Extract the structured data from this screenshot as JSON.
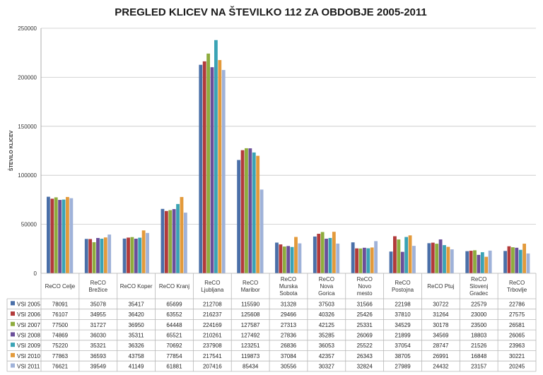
{
  "chart_data": {
    "type": "bar",
    "title": "PREGLED KLICEV NA ŠTEVILKO 112 ZA OBDOBJE 2005-2011",
    "ylabel": "ŠTEVILO KLICEV",
    "xlabel": "",
    "ylim": [
      0,
      250000
    ],
    "yticks": [
      0,
      50000,
      100000,
      150000,
      200000,
      250000
    ],
    "grid": true,
    "legend_position": "bottom-table",
    "categories": [
      "ReCO Celje",
      "ReCO Brežice",
      "ReCO Koper",
      "ReCO Kranj",
      "ReCO Ljubljana",
      "ReCO Maribor",
      "ReCO Murska Sobota",
      "ReCO Nova Gorica",
      "ReCO Novo mesto",
      "ReCO Postojna",
      "ReCO Ptuj",
      "ReCO Slovenj Gradec",
      "ReCO Trbovlje"
    ],
    "series": [
      {
        "name": "VSI 2005",
        "color": "#4a6fa8",
        "values": [
          78091,
          35078,
          35417,
          65699,
          212708,
          115590,
          31328,
          37503,
          31566,
          22198,
          30722,
          22579,
          22786
        ]
      },
      {
        "name": "VSI 2006",
        "color": "#b23a3a",
        "values": [
          76107,
          34955,
          36420,
          63552,
          216237,
          125608,
          29466,
          40326,
          25426,
          37810,
          31264,
          23000,
          27575
        ]
      },
      {
        "name": "VSI 2007",
        "color": "#8eac3e",
        "values": [
          77500,
          31727,
          36950,
          64448,
          224169,
          127587,
          27313,
          42125,
          25331,
          34529,
          30178,
          23500,
          26581
        ]
      },
      {
        "name": "VSI 2008",
        "color": "#6b4f9a",
        "values": [
          74869,
          36030,
          35311,
          65521,
          210261,
          127492,
          27836,
          35285,
          26069,
          21899,
          34569,
          18803,
          26065
        ]
      },
      {
        "name": "VSI 2009",
        "color": "#3aa3b5",
        "values": [
          75220,
          35321,
          36326,
          70692,
          237908,
          123251,
          26836,
          36053,
          25522,
          37054,
          28747,
          21526,
          23963
        ]
      },
      {
        "name": "VSI 2010",
        "color": "#e39a3b",
        "values": [
          77863,
          36593,
          43758,
          77854,
          217541,
          119873,
          37084,
          42357,
          26343,
          38705,
          26991,
          16848,
          30221
        ]
      },
      {
        "name": "VSI 2011",
        "color": "#9fb2d9",
        "values": [
          76621,
          39549,
          41149,
          61881,
          207416,
          85434,
          30556,
          30327,
          32824,
          27989,
          24432,
          23157,
          20245
        ]
      }
    ]
  }
}
